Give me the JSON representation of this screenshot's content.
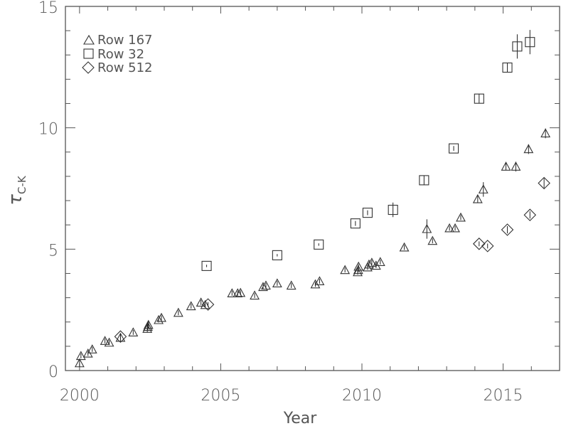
{
  "chart_data": {
    "type": "scatter",
    "title": "",
    "xlabel": "Year",
    "ylabel": "τ C-K",
    "ylabel_symbol": "τ",
    "ylabel_subscript": "C-K",
    "xlim": [
      1999.5,
      2017.0
    ],
    "ylim": [
      0,
      15
    ],
    "x_ticks": [
      2000,
      2005,
      2010,
      2015
    ],
    "x_tick_labels": [
      "2000",
      "2005",
      "2010",
      "2015"
    ],
    "x_minor_step": 1,
    "y_ticks": [
      0,
      5,
      10,
      15
    ],
    "y_tick_labels": [
      "0",
      "5",
      "10",
      "15"
    ],
    "y_minor_step": 1,
    "grid": false,
    "legend_position": "upper-left",
    "series": [
      {
        "name": "Row 167",
        "marker": "triangle",
        "x": [
          2000.0,
          2000.05,
          2000.3,
          2000.45,
          2000.9,
          2001.05,
          2001.45,
          2001.9,
          2002.4,
          2002.42,
          2002.44,
          2002.8,
          2002.9,
          2003.5,
          2003.95,
          2004.3,
          2004.45,
          2005.4,
          2005.6,
          2005.7,
          2006.2,
          2006.5,
          2006.6,
          2007.0,
          2007.5,
          2008.35,
          2008.5,
          2009.4,
          2009.85,
          2009.87,
          2009.88,
          2010.2,
          2010.25,
          2010.35,
          2010.5,
          2010.65,
          2011.5,
          2012.3,
          2012.5,
          2013.1,
          2013.3,
          2013.5,
          2014.1,
          2014.3,
          2015.1,
          2015.45,
          2015.9,
          2016.5
        ],
        "y": [
          0.3,
          0.6,
          0.7,
          0.87,
          1.22,
          1.15,
          1.35,
          1.57,
          1.72,
          1.8,
          1.88,
          2.08,
          2.17,
          2.38,
          2.65,
          2.8,
          2.7,
          3.18,
          3.18,
          3.2,
          3.09,
          3.44,
          3.5,
          3.59,
          3.5,
          3.55,
          3.68,
          4.14,
          4.05,
          4.14,
          4.28,
          4.25,
          4.37,
          4.44,
          4.32,
          4.47,
          5.07,
          5.83,
          5.34,
          5.86,
          5.86,
          6.3,
          7.06,
          7.46,
          8.4,
          8.4,
          9.12,
          9.77
        ],
        "err": [
          0.15,
          0.1,
          0.1,
          0.1,
          0.1,
          0.1,
          0.15,
          0.1,
          0.15,
          0.15,
          0.15,
          0.1,
          0.1,
          0.1,
          0.1,
          0.1,
          0.1,
          0.1,
          0.1,
          0.1,
          0.1,
          0.1,
          0.1,
          0.1,
          0.1,
          0.1,
          0.1,
          0.1,
          0.1,
          0.1,
          0.1,
          0.1,
          0.1,
          0.1,
          0.1,
          0.1,
          0.1,
          0.4,
          0.1,
          0.1,
          0.1,
          0.1,
          0.15,
          0.3,
          0.15,
          0.2,
          0.2,
          0.2
        ]
      },
      {
        "name": "Row 32",
        "marker": "square",
        "x": [
          2004.5,
          2007.0,
          2008.47,
          2009.77,
          2010.2,
          2011.1,
          2012.2,
          2013.25,
          2014.15,
          2015.15,
          2015.5,
          2015.95
        ],
        "y": [
          4.31,
          4.75,
          5.19,
          6.06,
          6.5,
          6.62,
          7.84,
          9.15,
          11.2,
          12.48,
          13.35,
          13.53
        ],
        "err": [
          0.05,
          0.05,
          0.05,
          0.1,
          0.1,
          0.3,
          0.2,
          0.1,
          0.2,
          0.2,
          0.5,
          0.5
        ]
      },
      {
        "name": "Row 512",
        "marker": "diamond",
        "x": [
          2001.45,
          2004.55,
          2014.15,
          2014.45,
          2015.15,
          2015.95,
          2016.45
        ],
        "y": [
          1.4,
          2.72,
          5.22,
          5.13,
          5.8,
          6.41,
          7.72
        ],
        "err": [
          0.1,
          0.1,
          0.1,
          0.1,
          0.15,
          0.15,
          0.2
        ]
      }
    ]
  },
  "legend": {
    "items": [
      {
        "label": "Row 167",
        "marker": "triangle"
      },
      {
        "label": "Row 32",
        "marker": "square"
      },
      {
        "label": "Row 512",
        "marker": "diamond"
      }
    ]
  },
  "axes": {
    "xlabel": "Year",
    "ylabel_symbol": "τ",
    "ylabel_subscript": "C-K"
  }
}
